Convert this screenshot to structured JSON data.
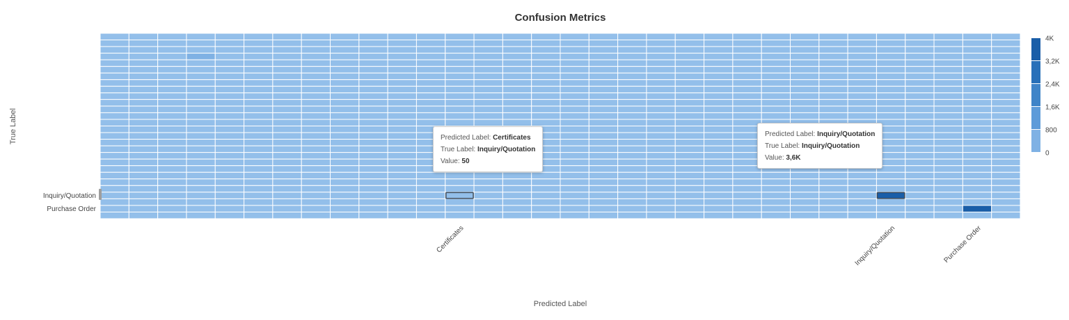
{
  "chart_data": {
    "type": "heatmap",
    "title": "Confusion Metrics",
    "xlabel": "Predicted Label",
    "ylabel": "True Label",
    "x_labels": [
      "",
      "",
      "",
      "",
      "",
      "",
      "",
      "",
      "",
      "",
      "",
      "",
      "Certificates",
      "",
      "",
      "",
      "",
      "",
      "",
      "",
      "",
      "",
      "",
      "",
      "",
      "",
      "",
      "Inquiry/Quotation",
      "",
      "",
      "Purchase Order",
      ""
    ],
    "y_labels": [
      "",
      "",
      "",
      "",
      "",
      "",
      "",
      "",
      "",
      "",
      "",
      "",
      "",
      "",
      "",
      "",
      "",
      "",
      "",
      "",
      "",
      "",
      "",
      "",
      "Inquiry/Quotation",
      "",
      "Purchase Order",
      ""
    ],
    "cells": [
      {
        "x": 3,
        "y": 3,
        "value": 500
      },
      {
        "x": 12,
        "y": 24,
        "value": 50
      },
      {
        "x": 27,
        "y": 24,
        "value": 3600
      },
      {
        "x": 30,
        "y": 26,
        "value": 4000
      }
    ],
    "default_value": 0,
    "color_scale": {
      "min": 0,
      "max": 4000,
      "ticks": [
        "0",
        "800",
        "1,6K",
        "2,4K",
        "3,2K",
        "4K"
      ],
      "colors": [
        "#93bfea",
        "#7fb1e4",
        "#5d9bd9",
        "#3f84c8",
        "#2870b9",
        "#1a5ea8"
      ]
    },
    "grid": true,
    "legend": "right"
  },
  "tooltips": [
    {
      "predicted_label": "Predicted Label:",
      "predicted_value": "Certificates",
      "true_label": "True Label:",
      "true_value": "Inquiry/Quotation",
      "value_label": "Value:",
      "value": "50"
    },
    {
      "predicted_label": "Predicted Label:",
      "predicted_value": "Inquiry/Quotation",
      "true_label": "True Label:",
      "true_value": "Inquiry/Quotation",
      "value_label": "Value:",
      "value": "3,6K"
    }
  ],
  "highlights": [
    {
      "x": 12,
      "y": 24,
      "style": "selected-outline"
    },
    {
      "x": 27,
      "y": 24,
      "style": "hover-outline"
    }
  ]
}
